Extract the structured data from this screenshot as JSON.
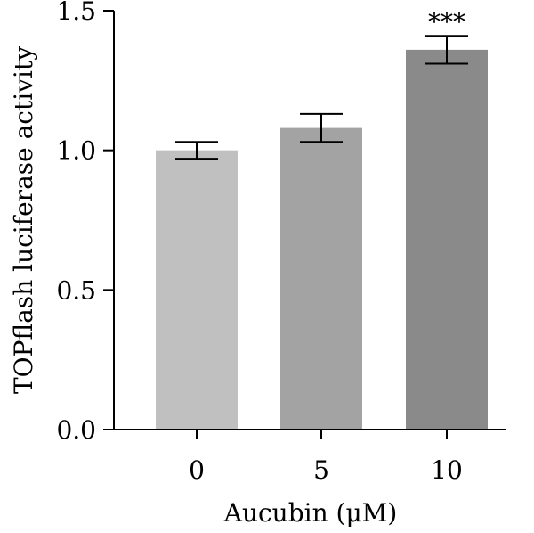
{
  "chart_data": {
    "type": "bar",
    "categories": [
      "0",
      "5",
      "10"
    ],
    "values": [
      1.0,
      1.08,
      1.36
    ],
    "errors": [
      0.03,
      0.05,
      0.05
    ],
    "bar_colors": [
      "#c0c0c0",
      "#a3a3a3",
      "#8a8a8a"
    ],
    "annotations": [
      "",
      "",
      "***"
    ],
    "xlabel": "Aucubin (μM)",
    "ylabel": "TOPflash luciferase activity",
    "ylim": [
      0,
      1.5
    ],
    "yticks": [
      0.0,
      0.5,
      1.0,
      1.5
    ],
    "ytick_labels": [
      "0.0",
      "0.5",
      "1.0",
      "1.5"
    ],
    "grid": false,
    "legend": "none"
  }
}
